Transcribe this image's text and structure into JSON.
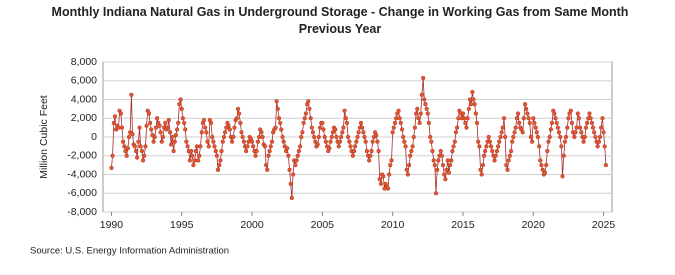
{
  "chart_data": {
    "type": "line",
    "title": "Monthly Indiana Natural Gas in Underground Storage - Change in Working Gas from Same Month Previous Year",
    "y_label": "Million Cubic Feet",
    "source": "Source: U.S. Energy Information Administration",
    "grid": true,
    "xlim": [
      1989.4,
      2025.6
    ],
    "ylim": [
      -8000,
      8000
    ],
    "xticks": [
      1990,
      1995,
      2000,
      2005,
      2010,
      2015,
      2020,
      2025
    ],
    "yticks": [
      {
        "value": 8000,
        "label": "8,000"
      },
      {
        "value": 6000,
        "label": "6,000"
      },
      {
        "value": 4000,
        "label": "4,000"
      },
      {
        "value": 2000,
        "label": "2,000"
      },
      0,
      {
        "value": -2000,
        "label": "-2,000"
      },
      {
        "value": -4000,
        "label": "-4,000"
      },
      {
        "value": -6000,
        "label": "-6,000"
      },
      {
        "value": -8000,
        "label": "-8,000"
      }
    ],
    "x": [
      1990,
      1990.08,
      1990.17,
      1990.25,
      1990.33,
      1990.42,
      1990.5,
      1990.58,
      1990.67,
      1990.75,
      1990.83,
      1990.92,
      1991,
      1991.08,
      1991.17,
      1991.25,
      1991.33,
      1991.42,
      1991.5,
      1991.58,
      1991.67,
      1991.75,
      1991.83,
      1991.92,
      1992,
      1992.08,
      1992.17,
      1992.25,
      1992.33,
      1992.42,
      1992.5,
      1992.58,
      1992.67,
      1992.75,
      1992.83,
      1992.92,
      1993,
      1993.08,
      1993.17,
      1993.25,
      1993.33,
      1993.42,
      1993.5,
      1993.58,
      1993.67,
      1993.75,
      1993.83,
      1993.92,
      1994,
      1994.08,
      1994.17,
      1994.25,
      1994.33,
      1994.42,
      1994.5,
      1994.58,
      1994.67,
      1994.75,
      1994.83,
      1994.92,
      1995,
      1995.08,
      1995.17,
      1995.25,
      1995.33,
      1995.42,
      1995.5,
      1995.58,
      1995.67,
      1995.75,
      1995.83,
      1995.92,
      1996,
      1996.08,
      1996.17,
      1996.25,
      1996.33,
      1996.42,
      1996.5,
      1996.58,
      1996.67,
      1996.75,
      1996.83,
      1996.92,
      1997,
      1997.08,
      1997.17,
      1997.25,
      1997.33,
      1997.42,
      1997.5,
      1997.58,
      1997.67,
      1997.75,
      1997.83,
      1997.92,
      1998,
      1998.08,
      1998.17,
      1998.25,
      1998.33,
      1998.42,
      1998.5,
      1998.58,
      1998.67,
      1998.75,
      1998.83,
      1998.92,
      1999,
      1999.08,
      1999.17,
      1999.25,
      1999.33,
      1999.42,
      1999.5,
      1999.58,
      1999.67,
      1999.75,
      1999.83,
      1999.92,
      2000,
      2000.08,
      2000.17,
      2000.25,
      2000.33,
      2000.42,
      2000.5,
      2000.58,
      2000.67,
      2000.75,
      2000.83,
      2000.92,
      2001,
      2001.08,
      2001.17,
      2001.25,
      2001.33,
      2001.42,
      2001.5,
      2001.58,
      2001.67,
      2001.75,
      2001.83,
      2001.92,
      2002,
      2002.08,
      2002.17,
      2002.25,
      2002.33,
      2002.42,
      2002.5,
      2002.58,
      2002.67,
      2002.75,
      2002.83,
      2002.92,
      2003,
      2003.08,
      2003.17,
      2003.25,
      2003.33,
      2003.42,
      2003.5,
      2003.58,
      2003.67,
      2003.75,
      2003.83,
      2003.92,
      2004,
      2004.08,
      2004.17,
      2004.25,
      2004.33,
      2004.42,
      2004.5,
      2004.58,
      2004.67,
      2004.75,
      2004.83,
      2004.92,
      2005,
      2005.08,
      2005.17,
      2005.25,
      2005.33,
      2005.42,
      2005.5,
      2005.58,
      2005.67,
      2005.75,
      2005.83,
      2005.92,
      2006,
      2006.08,
      2006.17,
      2006.25,
      2006.33,
      2006.42,
      2006.5,
      2006.58,
      2006.67,
      2006.75,
      2006.83,
      2006.92,
      2007,
      2007.08,
      2007.17,
      2007.25,
      2007.33,
      2007.42,
      2007.5,
      2007.58,
      2007.67,
      2007.75,
      2007.83,
      2007.92,
      2008,
      2008.08,
      2008.17,
      2008.25,
      2008.33,
      2008.42,
      2008.5,
      2008.58,
      2008.67,
      2008.75,
      2008.83,
      2008.92,
      2009,
      2009.08,
      2009.17,
      2009.25,
      2009.33,
      2009.42,
      2009.5,
      2009.58,
      2009.67,
      2009.75,
      2009.83,
      2009.92,
      2010,
      2010.08,
      2010.17,
      2010.25,
      2010.33,
      2010.42,
      2010.5,
      2010.58,
      2010.67,
      2010.75,
      2010.83,
      2010.92,
      2011,
      2011.08,
      2011.17,
      2011.25,
      2011.33,
      2011.42,
      2011.5,
      2011.58,
      2011.67,
      2011.75,
      2011.83,
      2011.92,
      2012,
      2012.08,
      2012.17,
      2012.25,
      2012.33,
      2012.42,
      2012.5,
      2012.58,
      2012.67,
      2012.75,
      2012.83,
      2012.92,
      2013,
      2013.08,
      2013.17,
      2013.25,
      2013.33,
      2013.42,
      2013.5,
      2013.58,
      2013.67,
      2013.75,
      2013.83,
      2013.92,
      2014,
      2014.08,
      2014.17,
      2014.25,
      2014.33,
      2014.42,
      2014.5,
      2014.58,
      2014.67,
      2014.75,
      2014.83,
      2014.92,
      2015,
      2015.08,
      2015.17,
      2015.25,
      2015.33,
      2015.42,
      2015.5,
      2015.58,
      2015.67,
      2015.75,
      2015.83,
      2015.92,
      2016,
      2016.08,
      2016.17,
      2016.25,
      2016.33,
      2016.42,
      2016.5,
      2016.58,
      2016.67,
      2016.75,
      2016.83,
      2016.92,
      2017,
      2017.08,
      2017.17,
      2017.25,
      2017.33,
      2017.42,
      2017.5,
      2017.58,
      2017.67,
      2017.75,
      2017.83,
      2017.92,
      2018,
      2018.08,
      2018.17,
      2018.25,
      2018.33,
      2018.42,
      2018.5,
      2018.58,
      2018.67,
      2018.75,
      2018.83,
      2018.92,
      2019,
      2019.08,
      2019.17,
      2019.25,
      2019.33,
      2019.42,
      2019.5,
      2019.58,
      2019.67,
      2019.75,
      2019.83,
      2019.92,
      2020,
      2020.08,
      2020.17,
      2020.25,
      2020.33,
      2020.42,
      2020.5,
      2020.58,
      2020.67,
      2020.75,
      2020.83,
      2020.92,
      2021,
      2021.08,
      2021.17,
      2021.25,
      2021.33,
      2021.42,
      2021.5,
      2021.58,
      2021.67,
      2021.75,
      2021.83,
      2021.92,
      2022,
      2022.08,
      2022.17,
      2022.25,
      2022.33,
      2022.42,
      2022.5,
      2022.58,
      2022.67,
      2022.75,
      2022.83,
      2022.92,
      2023,
      2023.08,
      2023.17,
      2023.25,
      2023.33,
      2023.42,
      2023.5,
      2023.58,
      2023.67,
      2023.75,
      2023.83,
      2023.92,
      2024,
      2024.08,
      2024.17,
      2024.25,
      2024.33,
      2024.42,
      2024.5,
      2024.58,
      2024.67,
      2024.75,
      2024.83,
      2024.92,
      2025,
      2025.08,
      2025.17
    ],
    "series": [
      {
        "color": "#a52a2a",
        "marker_color": "#e2572b",
        "values": [
          -3300,
          -2000,
          1500,
          2200,
          800,
          1200,
          1000,
          2800,
          2500,
          1000,
          -500,
          -1000,
          -1500,
          -2000,
          -1200,
          0,
          500,
          4500,
          300,
          -800,
          -1000,
          -1500,
          -2200,
          -500,
          1000,
          -1000,
          -1500,
          -2500,
          -2000,
          -1000,
          1200,
          2800,
          2500,
          1500,
          800,
          200,
          -500,
          0,
          1000,
          2000,
          1500,
          1200,
          500,
          -500,
          0,
          1000,
          1500,
          800,
          1000,
          1800,
          500,
          -800,
          0,
          -1500,
          -500,
          200,
          800,
          1500,
          3500,
          4000,
          3000,
          2000,
          1500,
          800,
          -500,
          -1000,
          -1500,
          -2500,
          -1500,
          -2000,
          -3000,
          -2500,
          -1500,
          -1000,
          -2500,
          -2000,
          -1000,
          500,
          1500,
          1800,
          1000,
          500,
          -500,
          -1000,
          1800,
          1500,
          0,
          -500,
          -1000,
          -1500,
          -2000,
          -3500,
          -3000,
          -2500,
          -1500,
          -500,
          0,
          500,
          1000,
          1500,
          1200,
          800,
          0,
          -500,
          0,
          1000,
          1800,
          2000,
          3000,
          2500,
          1500,
          500,
          0,
          -500,
          -1000,
          -1500,
          -1000,
          -500,
          0,
          -200,
          -500,
          -1000,
          -1500,
          -2000,
          -1500,
          -500,
          0,
          800,
          500,
          0,
          -800,
          -1000,
          -3000,
          -3500,
          -2000,
          -1500,
          -1000,
          -500,
          500,
          800,
          1000,
          3800,
          3000,
          2000,
          1500,
          800,
          0,
          -500,
          -1000,
          -1500,
          -1200,
          -2000,
          -3500,
          -5000,
          -6500,
          -4000,
          -2500,
          -3000,
          -2500,
          -2000,
          -1500,
          -1000,
          0,
          500,
          1500,
          2000,
          2500,
          3500,
          3800,
          3000,
          2000,
          1000,
          500,
          0,
          -500,
          -1000,
          -800,
          0,
          1000,
          1500,
          1500,
          800,
          0,
          -500,
          -1000,
          -1500,
          -1200,
          -500,
          0,
          500,
          1000,
          800,
          0,
          -500,
          -1000,
          -500,
          0,
          500,
          1000,
          2800,
          2000,
          1500,
          0,
          -500,
          -1000,
          -1500,
          -2000,
          -1500,
          -1000,
          -500,
          0,
          500,
          1000,
          1500,
          1000,
          500,
          0,
          -500,
          -1500,
          -2000,
          -2500,
          -2000,
          -1500,
          -500,
          0,
          500,
          200,
          -500,
          -1500,
          -4500,
          -5000,
          -4000,
          -4200,
          -5500,
          -5000,
          -5200,
          -5500,
          -4000,
          -3000,
          -2500,
          500,
          1000,
          1500,
          2000,
          2500,
          2800,
          2000,
          1500,
          800,
          0,
          -500,
          -1000,
          -3500,
          -4000,
          -3000,
          -2000,
          -1500,
          -1000,
          0,
          1000,
          2500,
          3000,
          2000,
          1500,
          2500,
          4500,
          6300,
          4000,
          3500,
          3000,
          2500,
          1500,
          0,
          -500,
          -1500,
          -2500,
          -3000,
          -6000,
          -3500,
          -2500,
          -2000,
          -1500,
          -2000,
          -3000,
          -4000,
          -4500,
          -3500,
          -2500,
          -3800,
          -3000,
          -2500,
          -1500,
          -1000,
          -500,
          500,
          1000,
          2000,
          2800,
          2500,
          2000,
          2500,
          2000,
          1500,
          1000,
          2000,
          3000,
          4000,
          3500,
          4800,
          4000,
          3500,
          2500,
          1500,
          -500,
          -1000,
          -3500,
          -4000,
          -3000,
          -2000,
          -1500,
          -1000,
          -500,
          0,
          -500,
          -1000,
          -1500,
          -2000,
          -2500,
          -2000,
          -1500,
          -1000,
          -500,
          0,
          500,
          1000,
          2000,
          0,
          -3000,
          -3500,
          -2500,
          -2000,
          -1500,
          -500,
          0,
          500,
          1000,
          2000,
          2500,
          1500,
          1000,
          800,
          500,
          2000,
          3500,
          3000,
          2500,
          2000,
          1500,
          0,
          -500,
          2000,
          1500,
          1000,
          500,
          0,
          -1000,
          -2500,
          -3000,
          -3500,
          -4000,
          -3800,
          -3000,
          -1500,
          -500,
          0,
          800,
          1500,
          2800,
          2500,
          2000,
          1500,
          1000,
          500,
          0,
          -1000,
          -4200,
          -2000,
          -500,
          0,
          1000,
          2000,
          2500,
          2800,
          1500,
          500,
          0,
          500,
          1000,
          2500,
          2000,
          1000,
          500,
          0,
          -500,
          0,
          1000,
          1500,
          2000,
          2500,
          2000,
          1500,
          1000,
          500,
          0,
          -500,
          -1000,
          -500,
          0,
          1000,
          2000,
          500,
          -1000,
          -3000
        ]
      }
    ]
  }
}
